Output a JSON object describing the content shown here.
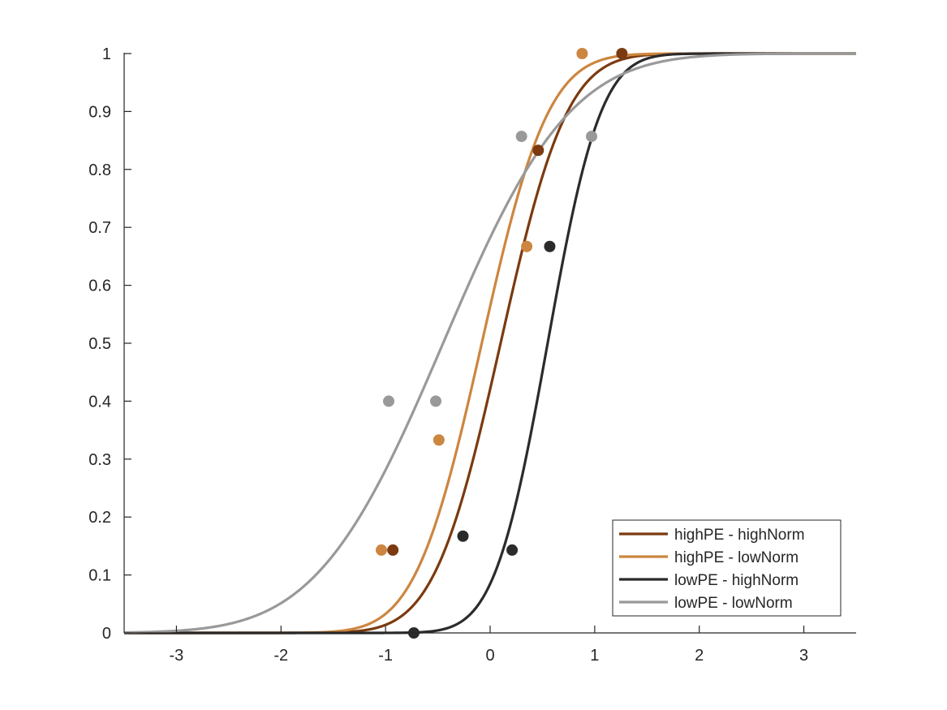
{
  "chart_data": {
    "type": "line",
    "title": "",
    "xlabel": "",
    "ylabel": "",
    "xlim": [
      -3.5,
      3.5
    ],
    "ylim": [
      0,
      1
    ],
    "xticks": [
      -3,
      -2,
      -1,
      0,
      1,
      2,
      3
    ],
    "xtick_labels": [
      "-3",
      "-2",
      "-1",
      "0",
      "1",
      "2",
      "3"
    ],
    "yticks": [
      0,
      0.1,
      0.2,
      0.3,
      0.4,
      0.5,
      0.6,
      0.7,
      0.8,
      0.9,
      1
    ],
    "ytick_labels": [
      "0",
      "0.1",
      "0.2",
      "0.3",
      "0.4",
      "0.5",
      "0.6",
      "0.7",
      "0.8",
      "0.9",
      "1"
    ],
    "grid": false,
    "legend_position": "bottom-right",
    "series": [
      {
        "name": "highPE - highNorm",
        "color": "#7b3a0f",
        "fit": {
          "mu": 0.1,
          "sigma": 0.5
        },
        "points": [
          {
            "x": -0.93,
            "y": 0.143
          },
          {
            "x": 0.46,
            "y": 0.833
          },
          {
            "x": 1.26,
            "y": 1.0
          }
        ]
      },
      {
        "name": "highPE - lowNorm",
        "color": "#cc8640",
        "fit": {
          "mu": -0.08,
          "sigma": 0.5
        },
        "points": [
          {
            "x": -1.04,
            "y": 0.143
          },
          {
            "x": -0.49,
            "y": 0.333
          },
          {
            "x": 0.35,
            "y": 0.667
          },
          {
            "x": 0.88,
            "y": 1.0
          }
        ]
      },
      {
        "name": "lowPE - highNorm",
        "color": "#2b2b2b",
        "fit": {
          "mu": 0.55,
          "sigma": 0.4
        },
        "points": [
          {
            "x": -0.73,
            "y": 0.0
          },
          {
            "x": -0.26,
            "y": 0.167
          },
          {
            "x": 0.21,
            "y": 0.143
          },
          {
            "x": 0.57,
            "y": 0.667
          }
        ]
      },
      {
        "name": "lowPE - lowNorm",
        "color": "#999999",
        "fit": {
          "mu": -0.45,
          "sigma": 0.95
        },
        "points": [
          {
            "x": -0.97,
            "y": 0.4
          },
          {
            "x": -0.52,
            "y": 0.4
          },
          {
            "x": 0.3,
            "y": 0.857
          },
          {
            "x": 0.97,
            "y": 0.857
          }
        ]
      }
    ]
  }
}
